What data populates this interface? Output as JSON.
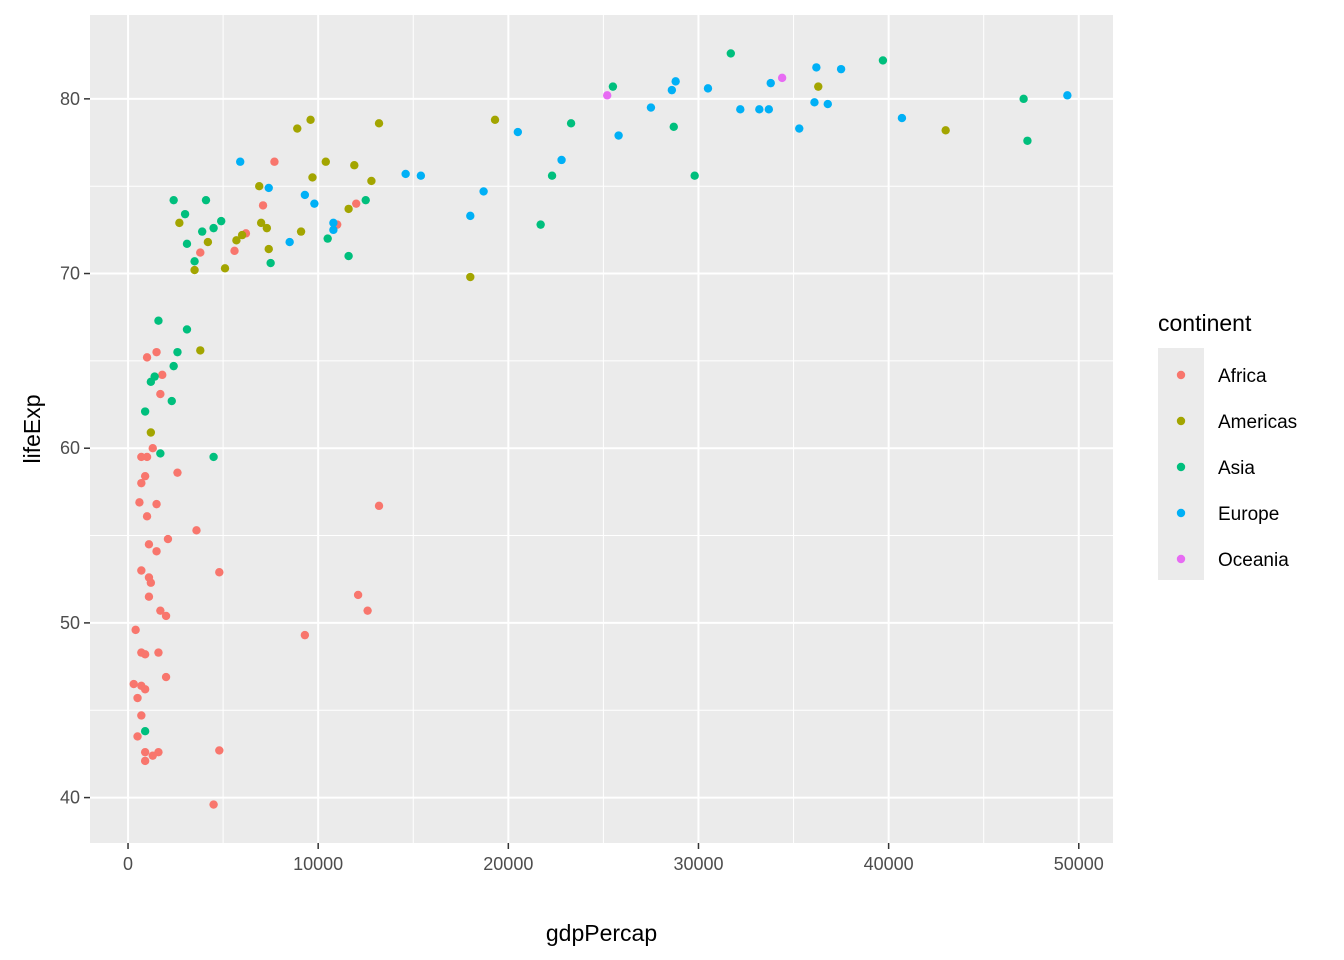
{
  "chart_data": {
    "type": "scatter",
    "xlabel": "gdpPercap",
    "ylabel": "lifeExp",
    "xlim": [
      -2000,
      51800
    ],
    "ylim": [
      37.4,
      84.8
    ],
    "x_ticks": [
      0,
      10000,
      20000,
      30000,
      40000,
      50000
    ],
    "x_tick_labels": [
      "0",
      "10000",
      "20000",
      "30000",
      "40000",
      "50000"
    ],
    "y_ticks": [
      40,
      50,
      60,
      70,
      80
    ],
    "y_tick_labels": [
      "40",
      "50",
      "60",
      "70",
      "80"
    ],
    "grid": true,
    "panel_background": "#ebebeb",
    "legend": {
      "title": "continent",
      "position": "right"
    },
    "series": [
      {
        "name": "Africa",
        "color": "#f8766d",
        "points": [
          [
            7700,
            76.4
          ],
          [
            7100,
            73.9
          ],
          [
            12000,
            74.0
          ],
          [
            11000,
            72.8
          ],
          [
            3800,
            71.2
          ],
          [
            5600,
            71.3
          ],
          [
            6200,
            72.3
          ],
          [
            1500,
            65.5
          ],
          [
            1000,
            65.2
          ],
          [
            1800,
            64.2
          ],
          [
            1700,
            63.1
          ],
          [
            1300,
            60.0
          ],
          [
            700,
            59.5
          ],
          [
            1000,
            59.5
          ],
          [
            900,
            58.4
          ],
          [
            700,
            58.0
          ],
          [
            2600,
            58.6
          ],
          [
            600,
            56.9
          ],
          [
            1500,
            56.8
          ],
          [
            13200,
            56.7
          ],
          [
            1000,
            56.1
          ],
          [
            3600,
            55.3
          ],
          [
            2100,
            54.8
          ],
          [
            1100,
            54.5
          ],
          [
            1500,
            54.1
          ],
          [
            700,
            53.0
          ],
          [
            4800,
            52.9
          ],
          [
            1100,
            52.6
          ],
          [
            1200,
            52.3
          ],
          [
            12100,
            51.6
          ],
          [
            1100,
            51.5
          ],
          [
            12600,
            50.7
          ],
          [
            1700,
            50.7
          ],
          [
            2000,
            50.4
          ],
          [
            400,
            49.6
          ],
          [
            9300,
            49.3
          ],
          [
            700,
            48.3
          ],
          [
            1600,
            48.3
          ],
          [
            900,
            48.2
          ],
          [
            2000,
            46.9
          ],
          [
            300,
            46.5
          ],
          [
            700,
            46.4
          ],
          [
            900,
            46.2
          ],
          [
            500,
            45.7
          ],
          [
            700,
            44.7
          ],
          [
            500,
            43.5
          ],
          [
            900,
            42.6
          ],
          [
            1600,
            42.6
          ],
          [
            1300,
            42.4
          ],
          [
            4800,
            42.7
          ],
          [
            900,
            42.1
          ],
          [
            4500,
            39.6
          ]
        ]
      },
      {
        "name": "Americas",
        "color": "#a3a500",
        "points": [
          [
            36300,
            80.7
          ],
          [
            9600,
            78.8
          ],
          [
            8900,
            78.3
          ],
          [
            13200,
            78.6
          ],
          [
            19300,
            78.8
          ],
          [
            43000,
            78.2
          ],
          [
            10400,
            76.4
          ],
          [
            11900,
            76.2
          ],
          [
            9700,
            75.5
          ],
          [
            12800,
            75.3
          ],
          [
            6900,
            75.0
          ],
          [
            11600,
            73.7
          ],
          [
            2700,
            72.9
          ],
          [
            7000,
            72.9
          ],
          [
            7300,
            72.6
          ],
          [
            6000,
            72.2
          ],
          [
            5700,
            71.9
          ],
          [
            4200,
            71.8
          ],
          [
            7400,
            71.4
          ],
          [
            3500,
            70.2
          ],
          [
            5100,
            70.3
          ],
          [
            18000,
            69.8
          ],
          [
            9100,
            72.4
          ],
          [
            3800,
            65.6
          ],
          [
            1200,
            60.9
          ]
        ]
      },
      {
        "name": "Asia",
        "color": "#00bf7d",
        "points": [
          [
            31700,
            82.6
          ],
          [
            39700,
            82.2
          ],
          [
            25500,
            80.7
          ],
          [
            47100,
            80.0
          ],
          [
            28700,
            78.4
          ],
          [
            23300,
            78.6
          ],
          [
            47300,
            77.6
          ],
          [
            29800,
            75.6
          ],
          [
            22300,
            75.6
          ],
          [
            2400,
            74.2
          ],
          [
            4100,
            74.2
          ],
          [
            12500,
            74.2
          ],
          [
            3000,
            73.4
          ],
          [
            4900,
            73.0
          ],
          [
            21700,
            72.8
          ],
          [
            4500,
            72.6
          ],
          [
            3900,
            72.4
          ],
          [
            10500,
            72.0
          ],
          [
            3100,
            71.7
          ],
          [
            11600,
            71.0
          ],
          [
            3500,
            70.7
          ],
          [
            7500,
            70.6
          ],
          [
            1600,
            67.3
          ],
          [
            3100,
            66.8
          ],
          [
            2600,
            65.5
          ],
          [
            1200,
            63.8
          ],
          [
            1400,
            64.1
          ],
          [
            2400,
            64.7
          ],
          [
            2300,
            62.7
          ],
          [
            900,
            62.1
          ],
          [
            1700,
            59.7
          ],
          [
            4500,
            59.5
          ],
          [
            900,
            43.8
          ]
        ]
      },
      {
        "name": "Europe",
        "color": "#00b0f6",
        "points": [
          [
            36200,
            81.8
          ],
          [
            37500,
            81.7
          ],
          [
            28800,
            81.0
          ],
          [
            33800,
            80.9
          ],
          [
            30500,
            80.6
          ],
          [
            28600,
            80.5
          ],
          [
            49400,
            80.2
          ],
          [
            36100,
            79.8
          ],
          [
            36800,
            79.7
          ],
          [
            27500,
            79.5
          ],
          [
            32200,
            79.4
          ],
          [
            33200,
            79.4
          ],
          [
            33700,
            79.4
          ],
          [
            40700,
            78.9
          ],
          [
            35300,
            78.3
          ],
          [
            20500,
            78.1
          ],
          [
            25800,
            77.9
          ],
          [
            22800,
            76.5
          ],
          [
            5900,
            76.4
          ],
          [
            7400,
            74.9
          ],
          [
            14600,
            75.7
          ],
          [
            15400,
            75.6
          ],
          [
            18700,
            74.7
          ],
          [
            9300,
            74.5
          ],
          [
            9800,
            74.0
          ],
          [
            18000,
            73.3
          ],
          [
            10800,
            72.9
          ],
          [
            10800,
            72.5
          ],
          [
            8500,
            71.8
          ]
        ]
      },
      {
        "name": "Oceania",
        "color": "#e76bf3",
        "points": [
          [
            34400,
            81.2
          ],
          [
            25200,
            80.2
          ]
        ]
      }
    ]
  }
}
